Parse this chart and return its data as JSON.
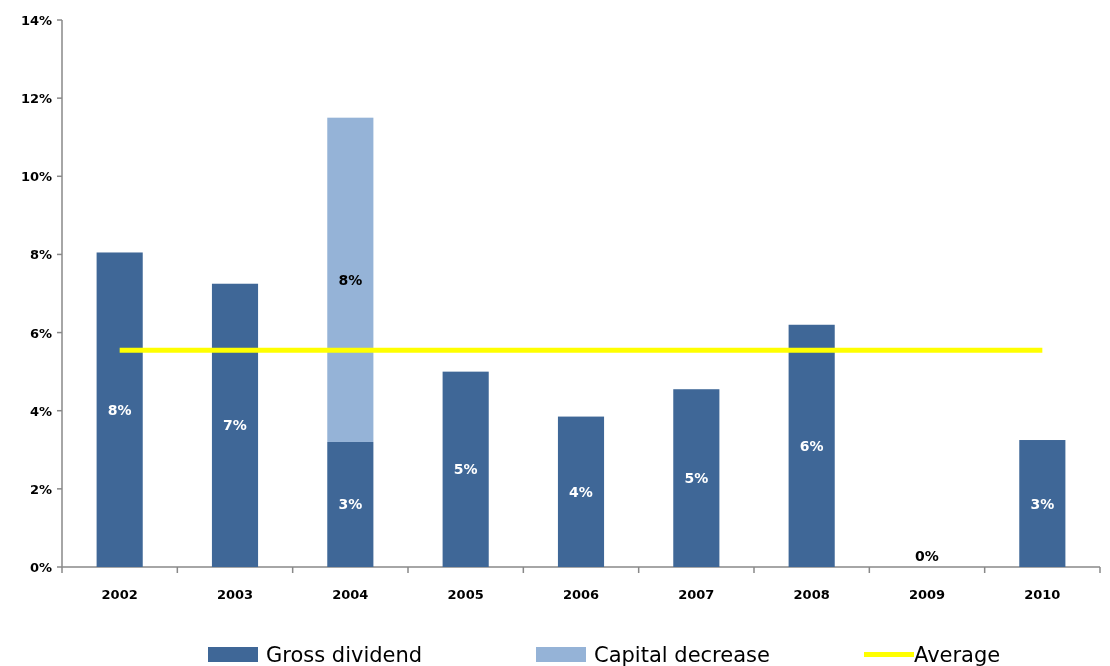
{
  "chart_data": {
    "type": "bar",
    "stacked": true,
    "categories": [
      "2002",
      "2003",
      "2004",
      "2005",
      "2006",
      "2007",
      "2008",
      "2009",
      "2010"
    ],
    "series": [
      {
        "name": "Gross dividend",
        "color": "#3f6797",
        "values": [
          8.05,
          7.25,
          3.2,
          5.0,
          3.85,
          4.55,
          6.2,
          0,
          3.25
        ],
        "value_labels": [
          "8%",
          "7%",
          "3%",
          "5%",
          "4%",
          "5%",
          "6%",
          "0%",
          "3%"
        ]
      },
      {
        "name": "Capital decrease",
        "color": "#95b3d7",
        "values": [
          null,
          null,
          8.3,
          null,
          null,
          null,
          null,
          null,
          null
        ],
        "value_labels": [
          null,
          null,
          "8%",
          null,
          null,
          null,
          null,
          null,
          null
        ]
      },
      {
        "name": "Average",
        "type": "line",
        "color": "#ffff00",
        "values": [
          5.55,
          5.55,
          5.55,
          5.55,
          5.55,
          5.55,
          5.55,
          5.55,
          5.55
        ]
      }
    ],
    "ylim": [
      0,
      14
    ],
    "yticks": [
      {
        "value": 0,
        "label": "0%"
      },
      {
        "value": 2,
        "label": "2%"
      },
      {
        "value": 4,
        "label": "4%"
      },
      {
        "value": 6,
        "label": "6%"
      },
      {
        "value": 8,
        "label": "8%"
      },
      {
        "value": 10,
        "label": "10%"
      },
      {
        "value": 12,
        "label": "12%"
      },
      {
        "value": 14,
        "label": "14%"
      }
    ],
    "grid": false,
    "legend": "bottom"
  }
}
